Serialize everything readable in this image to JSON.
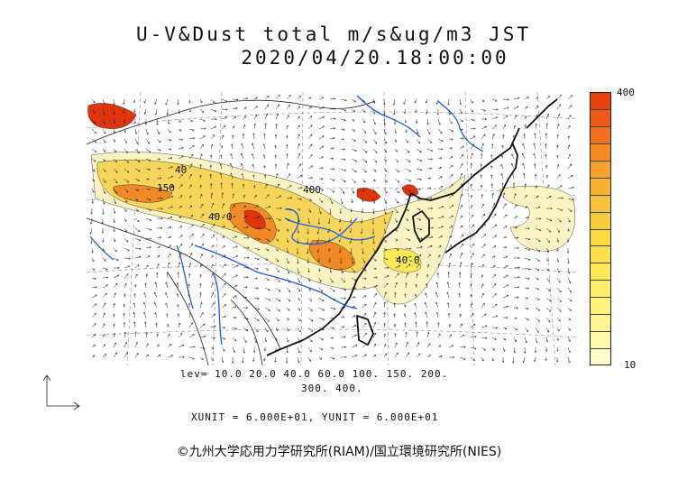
{
  "header": {
    "title_line1": "U-V&Dust total m/s&ug/m3 JST",
    "title_line2": "2020/04/20.18:00:00"
  },
  "map": {
    "contour_labels": [
      "40",
      "150",
      "40-0",
      "400",
      "40-0"
    ],
    "colors": {
      "ocean": "#ffffff",
      "coast": "#111111",
      "river": "#1e5ce6",
      "dust_low": "#fbf3c4",
      "dust_mid": "#f6d65a",
      "dust_high": "#f08a24",
      "dust_max": "#e0350c"
    }
  },
  "colorbar": {
    "max_label": "400",
    "min_label": "10",
    "colors": [
      "#e8400f",
      "#ef5a14",
      "#f2701b",
      "#f58a23",
      "#f7a02a",
      "#f9b331",
      "#fac238",
      "#fbcc3d",
      "#fcd842",
      "#fde04a",
      "#fde856",
      "#feee68",
      "#fff37c",
      "#fff693",
      "#fffaae",
      "#fffdd0"
    ]
  },
  "footer": {
    "lev_line1": "lev= 10.0 20.0 40.0 60.0 100. 150. 200.",
    "lev_line2": "300. 400.",
    "units": "XUNIT = 6.000E+01, YUNIT = 6.000E+01",
    "copyright": "©九州大学応用力学研究所(RIAM)/国立環境研究所(NIES)"
  }
}
